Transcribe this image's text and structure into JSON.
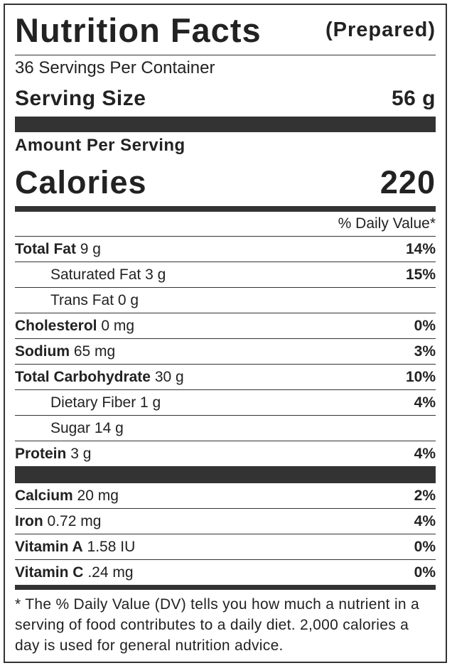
{
  "header": {
    "title": "Nutrition Facts",
    "subtitle": "(Prepared)"
  },
  "servings": "36 Servings Per Container",
  "serving_size": {
    "label": "Serving Size",
    "value": "56 g"
  },
  "amount_per_serving": "Amount Per Serving",
  "calories": {
    "label": "Calories",
    "value": "220"
  },
  "dv_header": "% Daily Value*",
  "nutrients": [
    {
      "name": "Total Fat",
      "amount": "9 g",
      "dv": "14%",
      "sub_rows": [
        {
          "name": "Saturated Fat",
          "amount": "3 g",
          "dv": "15%"
        },
        {
          "name": "Trans Fat",
          "amount": "0 g"
        }
      ]
    },
    {
      "name": "Cholesterol",
      "amount": "0 mg",
      "dv": "0%"
    },
    {
      "name": "Sodium",
      "amount": "65 mg",
      "dv": "3%"
    },
    {
      "name": "Total Carbohydrate",
      "amount": "30 g",
      "dv": "10%",
      "sub_rows": [
        {
          "name": "Dietary Fiber",
          "amount": "1 g",
          "dv": "4%"
        },
        {
          "name": "Sugar",
          "amount": "14 g"
        }
      ]
    },
    {
      "name": "Protein",
      "amount": "3 g",
      "dv": "4%"
    }
  ],
  "vitamins_minerals": [
    {
      "name": "Calcium",
      "amount": "20 mg",
      "dv": "2%"
    },
    {
      "name": "Iron",
      "amount": "0.72 mg",
      "dv": "4%"
    },
    {
      "name": "Vitamin A",
      "amount": "1.58 IU",
      "dv": "0%"
    },
    {
      "name": "Vitamin C",
      "amount": ".24 mg",
      "dv": "0%"
    }
  ],
  "footnote": "* The % Daily Value (DV) tells you how much a nutrient in a serving of food contributes to a daily diet. 2,000 calories a day is used for general nutrition advice."
}
